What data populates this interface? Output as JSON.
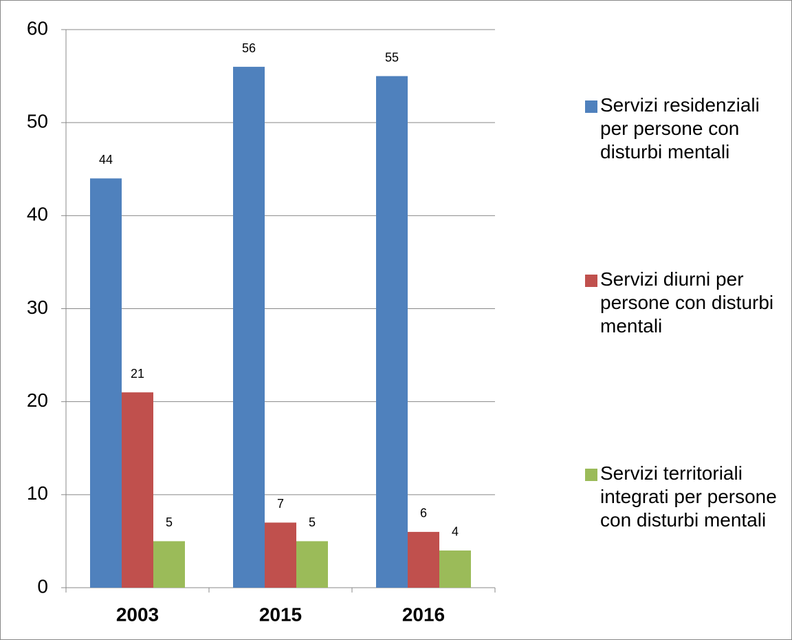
{
  "chart_data": {
    "type": "bar",
    "categories": [
      "2003",
      "2015",
      "2016"
    ],
    "series": [
      {
        "name": "Servizi residenziali per persone con disturbi mentali",
        "color": "#4f81bd",
        "values": [
          44,
          56,
          55
        ]
      },
      {
        "name": "Servizi diurni per persone con disturbi mentali",
        "color": "#c0504d",
        "values": [
          21,
          7,
          6
        ]
      },
      {
        "name": "Servizi territoriali integrati per persone con disturbi mentali",
        "color": "#9bbb59",
        "values": [
          5,
          5,
          4
        ]
      }
    ],
    "ylim": [
      0,
      60
    ],
    "yticks": [
      0,
      10,
      20,
      30,
      40,
      50,
      60
    ],
    "grid": true,
    "legend": "right"
  }
}
